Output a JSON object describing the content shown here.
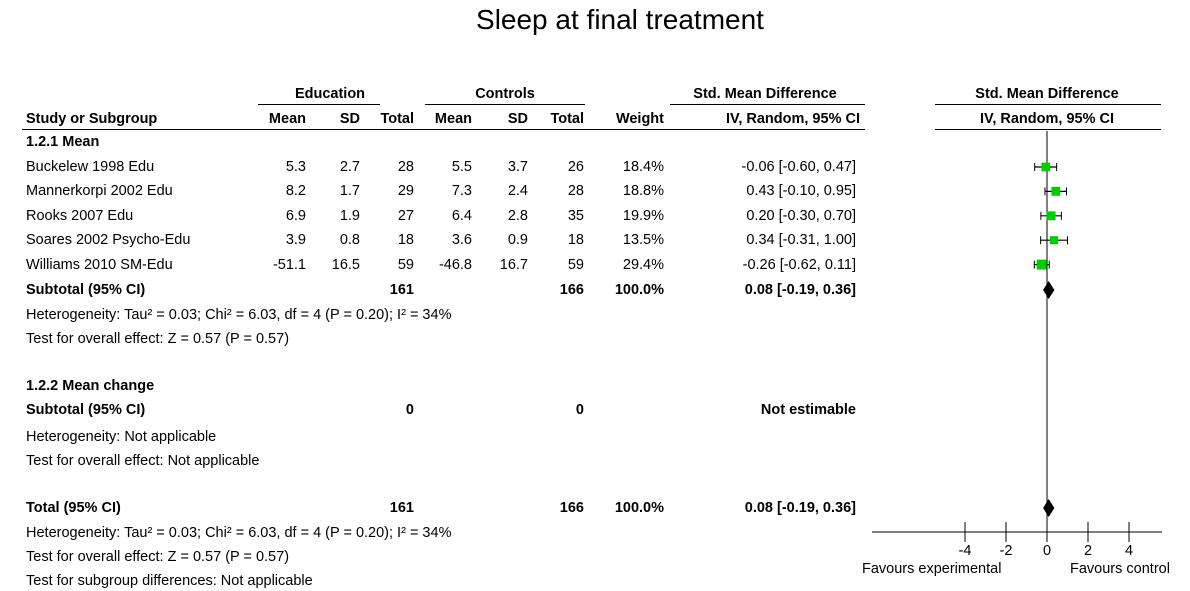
{
  "title": "Sleep at final treatment",
  "header": {
    "group_exp": "Education",
    "group_ctrl": "Controls",
    "effect_measure": "Std. Mean Difference",
    "method": "IV, Random, 95% CI",
    "plot_measure": "Std. Mean Difference",
    "plot_method": "IV, Random, 95% CI",
    "col_study": "Study or Subgroup",
    "col_mean": "Mean",
    "col_sd": "SD",
    "col_total": "Total",
    "col_weight": "Weight"
  },
  "subgroup1": {
    "label": "1.2.1 Mean",
    "subtotal_label": "Subtotal (95% CI)",
    "subtotal_exp_total": "161",
    "subtotal_ctrl_total": "166",
    "subtotal_weight": "100.0%",
    "subtotal_ci": "0.08 [-0.19, 0.36]",
    "heterogeneity": "Heterogeneity: Tau² = 0.03; Chi² = 6.03, df = 4 (P = 0.20); I² = 34%",
    "overall": "Test for overall effect: Z = 0.57 (P = 0.57)"
  },
  "subgroup2": {
    "label": "1.2.2 Mean change",
    "subtotal_label": "Subtotal (95% CI)",
    "subtotal_exp_total": "0",
    "subtotal_ctrl_total": "0",
    "subtotal_ci": "Not estimable",
    "heterogeneity": "Heterogeneity: Not applicable",
    "overall": "Test for overall effect: Not applicable"
  },
  "total": {
    "label": "Total (95% CI)",
    "exp_total": "161",
    "ctrl_total": "166",
    "weight": "100.0%",
    "ci": "0.08 [-0.19, 0.36]",
    "heterogeneity": "Heterogeneity: Tau² = 0.03; Chi² = 6.03, df = 4 (P = 0.20); I² = 34%",
    "overall": "Test for overall effect: Z = 0.57 (P = 0.57)",
    "subgroup_diff": "Test for subgroup differences: Not applicable"
  },
  "axis": {
    "favours_left": "Favours experimental",
    "favours_right": "Favours control"
  },
  "colors": {
    "marker": "#00cc00",
    "diamond": "#000000"
  },
  "chart_data": {
    "type": "forest",
    "xlim": [
      -4,
      4
    ],
    "ticks": [
      -4,
      -2,
      0,
      2,
      4
    ],
    "tick_labels": [
      "-4",
      "-2",
      "0",
      "2",
      "4"
    ],
    "studies": [
      {
        "name": "Buckelew 1998 Edu",
        "exp_mean": "5.3",
        "exp_sd": "2.7",
        "exp_total": "28",
        "ctrl_mean": "5.5",
        "ctrl_sd": "3.7",
        "ctrl_total": "26",
        "weight": "18.4%",
        "ci_text": "-0.06 [-0.60, 0.47]",
        "est": -0.06,
        "lo": -0.6,
        "hi": 0.47,
        "w": 18.4
      },
      {
        "name": "Mannerkorpi 2002 Edu",
        "exp_mean": "8.2",
        "exp_sd": "1.7",
        "exp_total": "29",
        "ctrl_mean": "7.3",
        "ctrl_sd": "2.4",
        "ctrl_total": "28",
        "weight": "18.8%",
        "ci_text": "0.43 [-0.10, 0.95]",
        "est": 0.43,
        "lo": -0.1,
        "hi": 0.95,
        "w": 18.8
      },
      {
        "name": "Rooks 2007 Edu",
        "exp_mean": "6.9",
        "exp_sd": "1.9",
        "exp_total": "27",
        "ctrl_mean": "6.4",
        "ctrl_sd": "2.8",
        "ctrl_total": "35",
        "weight": "19.9%",
        "ci_text": "0.20 [-0.30, 0.70]",
        "est": 0.2,
        "lo": -0.3,
        "hi": 0.7,
        "w": 19.9
      },
      {
        "name": "Soares 2002 Psycho-Edu",
        "exp_mean": "3.9",
        "exp_sd": "0.8",
        "exp_total": "18",
        "ctrl_mean": "3.6",
        "ctrl_sd": "0.9",
        "ctrl_total": "18",
        "weight": "13.5%",
        "ci_text": "0.34 [-0.31, 1.00]",
        "est": 0.34,
        "lo": -0.31,
        "hi": 1.0,
        "w": 13.5
      },
      {
        "name": "Williams 2010 SM-Edu",
        "exp_mean": "-51.1",
        "exp_sd": "16.5",
        "exp_total": "59",
        "ctrl_mean": "-46.8",
        "ctrl_sd": "16.7",
        "ctrl_total": "59",
        "weight": "29.4%",
        "ci_text": "-0.26 [-0.62, 0.11]",
        "est": -0.26,
        "lo": -0.62,
        "hi": 0.11,
        "w": 29.4
      }
    ],
    "pooled": [
      {
        "label": "Subtotal (95% CI)",
        "est": 0.08,
        "lo": -0.19,
        "hi": 0.36
      },
      {
        "label": "Total (95% CI)",
        "est": 0.08,
        "lo": -0.19,
        "hi": 0.36
      }
    ]
  }
}
